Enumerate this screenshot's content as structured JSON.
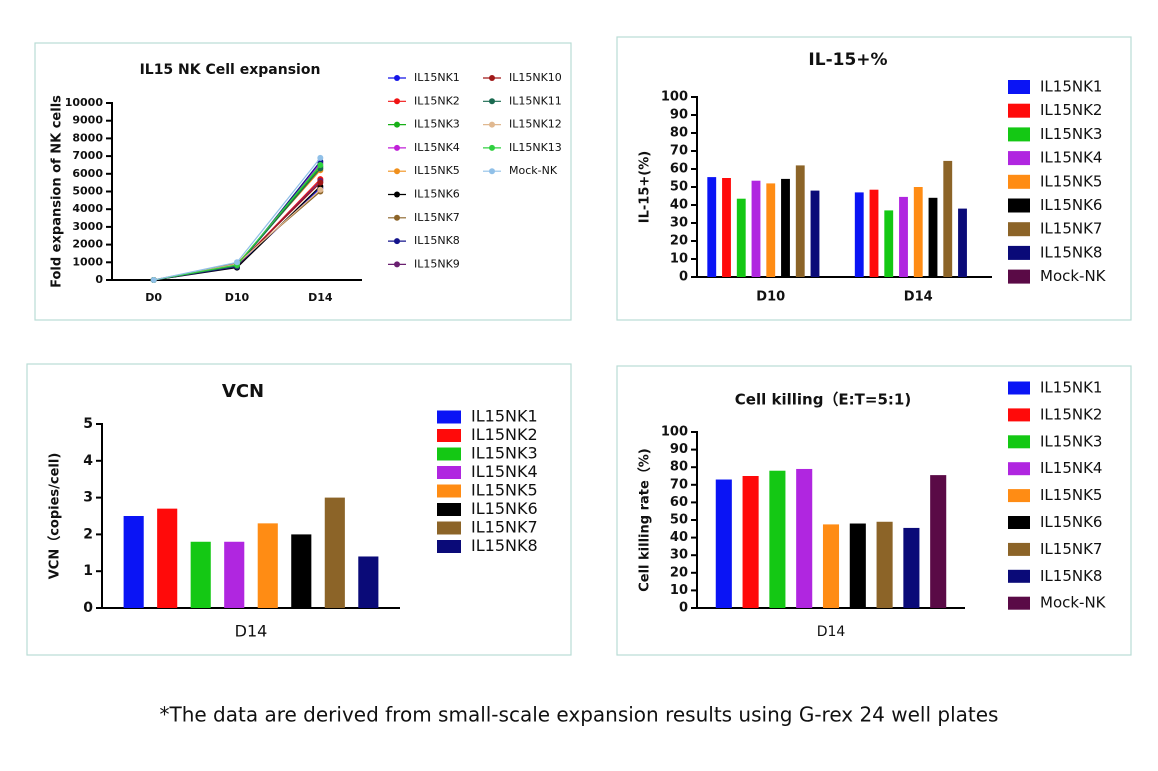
{
  "chart_data": [
    {
      "type": "line",
      "title": "IL15 NK Cell expansion",
      "y_label": "Fold expansion of NK cells",
      "categories": [
        "D0",
        "D10",
        "D14"
      ],
      "ylim": [
        0,
        10000
      ],
      "yticks": [
        0,
        1000,
        2000,
        3000,
        4000,
        5000,
        6000,
        7000,
        8000,
        9000,
        10000
      ],
      "series": [
        {
          "name": "IL15NK1",
          "color": "#1515e8",
          "values": [
            0,
            750,
            5200
          ]
        },
        {
          "name": "IL15NK2",
          "color": "#f01414",
          "values": [
            0,
            800,
            5700
          ]
        },
        {
          "name": "IL15NK3",
          "color": "#18b018",
          "values": [
            0,
            850,
            6400
          ]
        },
        {
          "name": "IL15NK4",
          "color": "#c020d8",
          "values": [
            0,
            800,
            6600
          ]
        },
        {
          "name": "IL15NK5",
          "color": "#f0901c",
          "values": [
            0,
            900,
            6200
          ]
        },
        {
          "name": "IL15NK6",
          "color": "#000000",
          "values": [
            0,
            700,
            5300
          ]
        },
        {
          "name": "IL15NK7",
          "color": "#8c6428",
          "values": [
            0,
            950,
            5000
          ]
        },
        {
          "name": "IL15NK8",
          "color": "#14148c",
          "values": [
            0,
            750,
            6700
          ]
        },
        {
          "name": "IL15NK9",
          "color": "#6a2070",
          "values": [
            0,
            800,
            5600
          ]
        },
        {
          "name": "IL15NK10",
          "color": "#a01818",
          "values": [
            0,
            850,
            5500
          ]
        },
        {
          "name": "IL15NK11",
          "color": "#1a6a50",
          "values": [
            0,
            800,
            6300
          ]
        },
        {
          "name": "IL15NK12",
          "color": "#e0b890",
          "values": [
            0,
            900,
            5100
          ]
        },
        {
          "name": "IL15NK13",
          "color": "#30d040",
          "values": [
            0,
            850,
            6500
          ]
        },
        {
          "name": "Mock-NK",
          "color": "#90c0e8",
          "values": [
            0,
            1000,
            6900
          ]
        }
      ]
    },
    {
      "type": "bar",
      "title": "IL-15+%",
      "y_label": "IL-15+(%)",
      "categories": [
        "D10",
        "D14"
      ],
      "ylim": [
        0,
        100
      ],
      "yticks": [
        0,
        10,
        20,
        30,
        40,
        50,
        60,
        70,
        80,
        90,
        100
      ],
      "series": [
        {
          "name": "IL15NK1",
          "color": "#0a14f5",
          "values": [
            55.5,
            47
          ]
        },
        {
          "name": "IL15NK2",
          "color": "#ff0a0a",
          "values": [
            55,
            48.5
          ]
        },
        {
          "name": "IL15NK3",
          "color": "#14c814",
          "values": [
            43.5,
            37
          ]
        },
        {
          "name": "IL15NK4",
          "color": "#b026e0",
          "values": [
            53.5,
            44.5
          ]
        },
        {
          "name": "IL15NK5",
          "color": "#ff8c14",
          "values": [
            52,
            50
          ]
        },
        {
          "name": "IL15NK6",
          "color": "#000000",
          "values": [
            54.5,
            44
          ]
        },
        {
          "name": "IL15NK7",
          "color": "#8c6428",
          "values": [
            62,
            64.5
          ]
        },
        {
          "name": "IL15NK8",
          "color": "#0a0a78",
          "values": [
            48,
            38
          ]
        },
        {
          "name": "Mock-NK",
          "color": "#5a0a46",
          "values": [
            null,
            null
          ]
        }
      ]
    },
    {
      "type": "bar",
      "title": "VCN",
      "y_label": "VCN（copies/cell)",
      "categories": [
        "D14"
      ],
      "ylim": [
        0,
        5
      ],
      "yticks": [
        0,
        1,
        2,
        3,
        4,
        5
      ],
      "series": [
        {
          "name": "IL15NK1",
          "color": "#0a14f5",
          "values": [
            2.5
          ]
        },
        {
          "name": "IL15NK2",
          "color": "#ff0a0a",
          "values": [
            2.7
          ]
        },
        {
          "name": "IL15NK3",
          "color": "#14c814",
          "values": [
            1.8
          ]
        },
        {
          "name": "IL15NK4",
          "color": "#b026e0",
          "values": [
            1.8
          ]
        },
        {
          "name": "IL15NK5",
          "color": "#ff8c14",
          "values": [
            2.3
          ]
        },
        {
          "name": "IL15NK6",
          "color": "#000000",
          "values": [
            2.0
          ]
        },
        {
          "name": "IL15NK7",
          "color": "#8c6428",
          "values": [
            3.0
          ]
        },
        {
          "name": "IL15NK8",
          "color": "#0a0a78",
          "values": [
            1.4
          ]
        }
      ]
    },
    {
      "type": "bar",
      "title": "Cell killing（E:T=5:1)",
      "y_label": "Cell killing rate（%)",
      "categories": [
        "D14"
      ],
      "ylim": [
        0,
        100
      ],
      "yticks": [
        0,
        10,
        20,
        30,
        40,
        50,
        60,
        70,
        80,
        90,
        100
      ],
      "series": [
        {
          "name": "IL15NK1",
          "color": "#0a14f5",
          "values": [
            73
          ]
        },
        {
          "name": "IL15NK2",
          "color": "#ff0a0a",
          "values": [
            75
          ]
        },
        {
          "name": "IL15NK3",
          "color": "#14c814",
          "values": [
            78
          ]
        },
        {
          "name": "IL15NK4",
          "color": "#b026e0",
          "values": [
            79
          ]
        },
        {
          "name": "IL15NK5",
          "color": "#ff8c14",
          "values": [
            47.5
          ]
        },
        {
          "name": "IL15NK6",
          "color": "#000000",
          "values": [
            48
          ]
        },
        {
          "name": "IL15NK7",
          "color": "#8c6428",
          "values": [
            49
          ]
        },
        {
          "name": "IL15NK8",
          "color": "#0a0a78",
          "values": [
            45.5
          ]
        },
        {
          "name": "Mock-NK",
          "color": "#5a0a46",
          "values": [
            75.5
          ]
        }
      ]
    }
  ],
  "caption": "*The data are derived from small-scale expansion results using G-rex 24 well plates"
}
